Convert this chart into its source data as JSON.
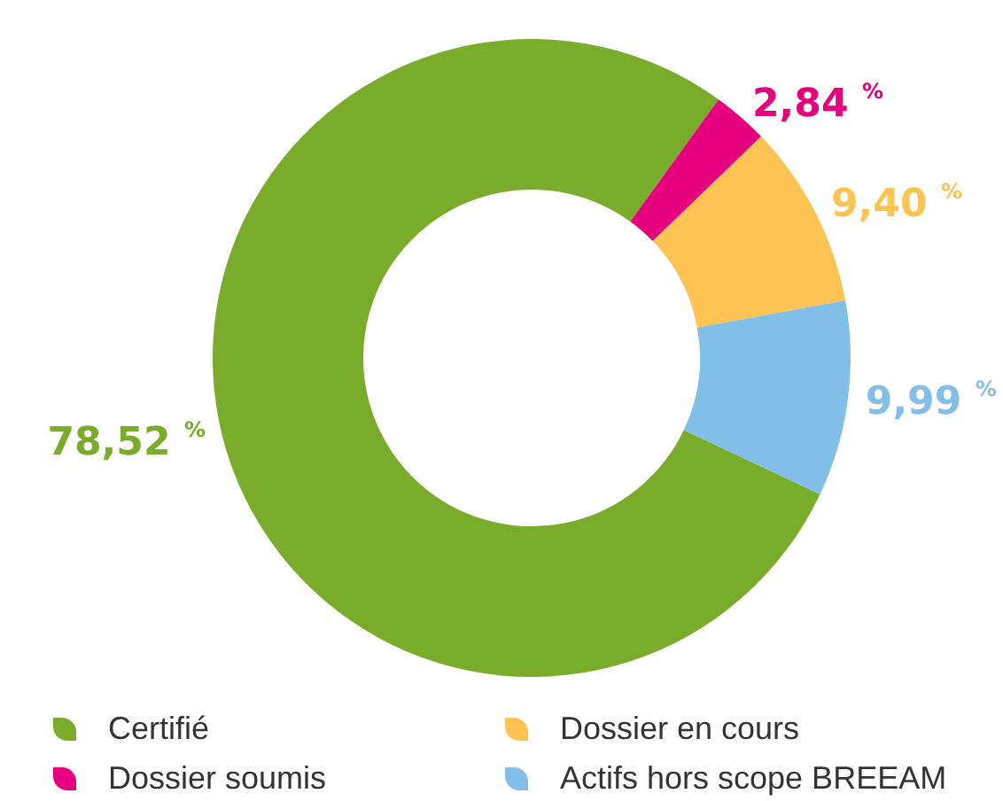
{
  "chart_data": {
    "type": "donut",
    "categories": [
      "Certifié",
      "Dossier soumis",
      "Dossier en cours",
      "Actifs hors scope BREEAM"
    ],
    "values": [
      78.52,
      2.84,
      9.4,
      9.99
    ],
    "colors": [
      "#7aac2c",
      "#e6007e",
      "#fdc453",
      "#82bfe8"
    ],
    "value_labels": [
      "78,52 $^{%}$",
      "2,84 $^{%}$",
      "9,40 $^{%}$",
      "9,99 $^{%}$"
    ],
    "legend": "bottom"
  }
}
